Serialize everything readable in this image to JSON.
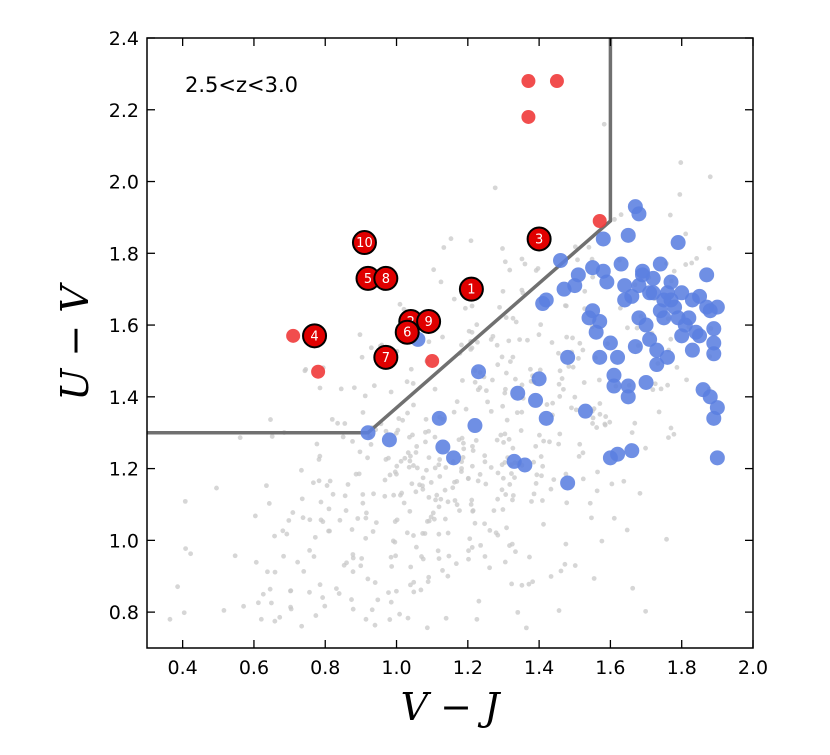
{
  "chart_data": {
    "type": "scatter",
    "title": "",
    "xlabel": "V − J",
    "ylabel": "U − V",
    "xlim": [
      0.3,
      2.0
    ],
    "ylim": [
      0.7,
      2.4
    ],
    "xticks": [
      "0.4",
      "0.6",
      "0.8",
      "1.0",
      "1.2",
      "1.4",
      "1.6",
      "1.8",
      "2.0"
    ],
    "xtick_values": [
      0.4,
      0.6,
      0.8,
      1.0,
      1.2,
      1.4,
      1.6,
      1.8,
      2.0
    ],
    "yticks": [
      "0.8",
      "1.0",
      "1.2",
      "1.4",
      "1.6",
      "1.8",
      "2.0",
      "2.2",
      "2.4"
    ],
    "ytick_values": [
      0.8,
      1.0,
      1.2,
      1.4,
      1.6,
      1.8,
      2.0,
      2.2,
      2.4
    ],
    "annotation": "2.5<z<3.0",
    "grid": false,
    "colors": {
      "background": "#c8c8c8",
      "blue": "#5b7fe0",
      "red": "#f03a3a",
      "boundary": "#707070"
    },
    "boundary_line": {
      "x": [
        0.3,
        0.92,
        1.6,
        1.6
      ],
      "y": [
        1.3,
        1.3,
        1.89,
        2.4
      ]
    },
    "background_points_seed": 20250101,
    "background_points_count": 620,
    "blue_points": {
      "x": [
        0.92,
        0.98,
        1.06,
        1.12,
        1.13,
        1.16,
        1.22,
        1.23,
        1.33,
        1.34,
        1.36,
        1.39,
        1.4,
        1.41,
        1.42,
        1.42,
        1.46,
        1.47,
        1.48,
        1.48,
        1.5,
        1.51,
        1.53,
        1.54,
        1.55,
        1.55,
        1.56,
        1.57,
        1.57,
        1.58,
        1.58,
        1.59,
        1.6,
        1.6,
        1.61,
        1.61,
        1.62,
        1.62,
        1.63,
        1.64,
        1.64,
        1.65,
        1.65,
        1.65,
        1.66,
        1.66,
        1.67,
        1.67,
        1.68,
        1.68,
        1.68,
        1.69,
        1.69,
        1.7,
        1.7,
        1.71,
        1.71,
        1.72,
        1.72,
        1.73,
        1.73,
        1.74,
        1.74,
        1.75,
        1.75,
        1.76,
        1.76,
        1.77,
        1.77,
        1.78,
        1.79,
        1.79,
        1.8,
        1.8,
        1.81,
        1.82,
        1.83,
        1.83,
        1.84,
        1.85,
        1.85,
        1.86,
        1.87,
        1.87,
        1.88,
        1.88,
        1.89,
        1.89,
        1.89,
        1.89,
        1.9,
        1.9,
        1.9
      ],
      "y": [
        1.3,
        1.28,
        1.56,
        1.34,
        1.26,
        1.23,
        1.32,
        1.47,
        1.22,
        1.41,
        1.21,
        1.39,
        1.45,
        1.66,
        1.34,
        1.67,
        1.78,
        1.7,
        1.16,
        1.51,
        1.71,
        1.74,
        1.36,
        1.62,
        1.76,
        1.64,
        1.58,
        1.61,
        1.51,
        1.84,
        1.75,
        1.72,
        1.55,
        1.23,
        1.46,
        1.43,
        1.51,
        1.24,
        1.77,
        1.71,
        1.67,
        1.43,
        1.4,
        1.85,
        1.68,
        1.25,
        1.93,
        1.54,
        1.71,
        1.62,
        1.91,
        1.74,
        1.75,
        1.6,
        1.44,
        1.56,
        1.69,
        1.73,
        1.69,
        1.53,
        1.49,
        1.64,
        1.77,
        1.67,
        1.62,
        1.51,
        1.69,
        1.72,
        1.67,
        1.65,
        1.83,
        1.62,
        1.69,
        1.57,
        1.6,
        1.62,
        1.53,
        1.67,
        1.58,
        1.68,
        1.57,
        1.42,
        1.74,
        1.65,
        1.64,
        1.4,
        1.55,
        1.52,
        1.59,
        1.34,
        1.37,
        1.23,
        1.65
      ]
    },
    "red_points": {
      "x": [
        0.71,
        0.78,
        1.1,
        1.37,
        1.37,
        1.45,
        1.57
      ],
      "y": [
        1.57,
        1.47,
        1.5,
        2.18,
        2.28,
        2.28,
        1.89
      ]
    },
    "labeled_points": [
      {
        "label": "1",
        "x": 1.21,
        "y": 1.7
      },
      {
        "label": "2",
        "x": 1.04,
        "y": 1.61
      },
      {
        "label": "3",
        "x": 1.4,
        "y": 1.84
      },
      {
        "label": "4",
        "x": 0.77,
        "y": 1.57
      },
      {
        "label": "5",
        "x": 0.92,
        "y": 1.73
      },
      {
        "label": "6",
        "x": 1.03,
        "y": 1.58
      },
      {
        "label": "7",
        "x": 0.97,
        "y": 1.51
      },
      {
        "label": "8",
        "x": 0.97,
        "y": 1.73
      },
      {
        "label": "9",
        "x": 1.09,
        "y": 1.61
      },
      {
        "label": "10",
        "x": 0.91,
        "y": 1.83
      }
    ]
  }
}
